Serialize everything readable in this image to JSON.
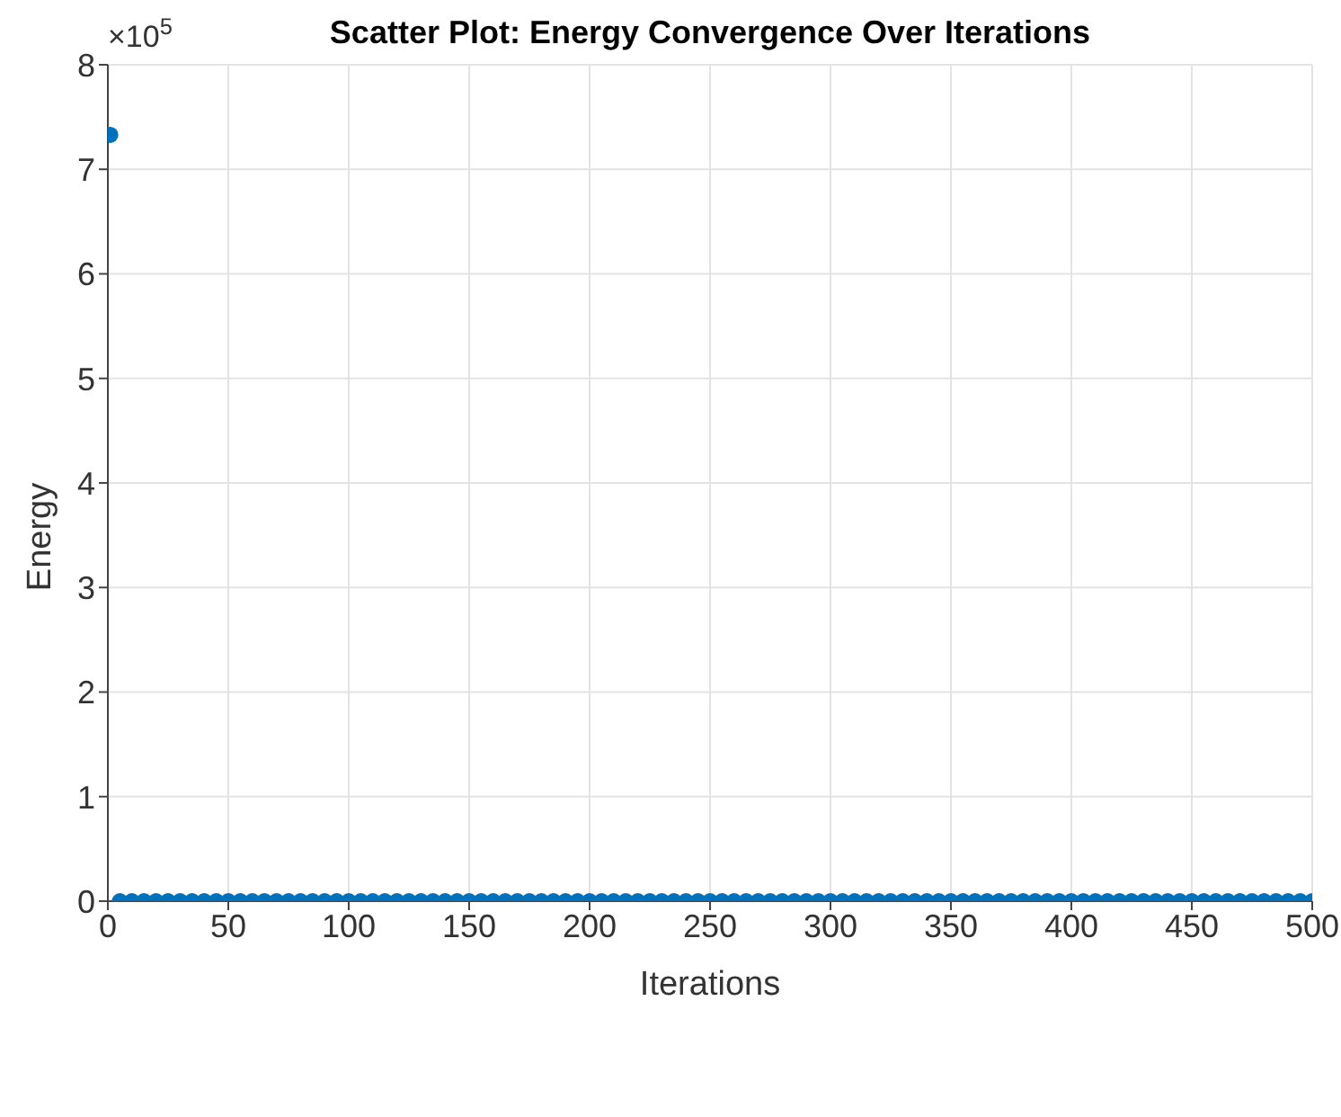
{
  "chart_data": {
    "type": "scatter",
    "title": "Scatter Plot: Energy Convergence Over Iterations",
    "xlabel": "Iterations",
    "ylabel": "Energy",
    "annotations": [
      "×10$^{5}$"
    ],
    "x": [
      1,
      5,
      10,
      15,
      20,
      25,
      30,
      35,
      40,
      45,
      50,
      55,
      60,
      65,
      70,
      75,
      80,
      85,
      90,
      95,
      100,
      105,
      110,
      115,
      120,
      125,
      130,
      135,
      140,
      145,
      150,
      155,
      160,
      165,
      170,
      175,
      180,
      185,
      190,
      195,
      200,
      205,
      210,
      215,
      220,
      225,
      230,
      235,
      240,
      245,
      250,
      255,
      260,
      265,
      270,
      275,
      280,
      285,
      290,
      295,
      300,
      305,
      310,
      315,
      320,
      325,
      330,
      335,
      340,
      345,
      350,
      355,
      360,
      365,
      370,
      375,
      380,
      385,
      390,
      395,
      400,
      405,
      410,
      415,
      420,
      425,
      430,
      435,
      440,
      445,
      450,
      455,
      460,
      465,
      470,
      475,
      480,
      485,
      490,
      495,
      500
    ],
    "values": [
      7.33,
      0,
      0,
      0,
      0,
      0,
      0,
      0,
      0,
      0,
      0,
      0,
      0,
      0,
      0,
      0,
      0,
      0,
      0,
      0,
      0,
      0,
      0,
      0,
      0,
      0,
      0,
      0,
      0,
      0,
      0,
      0,
      0,
      0,
      0,
      0,
      0,
      0,
      0,
      0,
      0,
      0,
      0,
      0,
      0,
      0,
      0,
      0,
      0,
      0,
      0,
      0,
      0,
      0,
      0,
      0,
      0,
      0,
      0,
      0,
      0,
      0,
      0,
      0,
      0,
      0,
      0,
      0,
      0,
      0,
      0,
      0,
      0,
      0,
      0,
      0,
      0,
      0,
      0,
      0,
      0,
      0,
      0,
      0,
      0,
      0,
      0,
      0,
      0,
      0,
      0,
      0,
      0,
      0,
      0,
      0,
      0,
      0,
      0,
      0,
      0
    ],
    "color": "#0072bd",
    "marker": "circle",
    "grid": true,
    "xlim": [
      0,
      500
    ],
    "xticks": [
      0,
      50,
      100,
      150,
      200,
      250,
      300,
      350,
      400,
      450,
      500
    ],
    "ylim": [
      0,
      8
    ],
    "yticks": [
      0,
      1,
      2,
      3,
      4,
      5,
      6,
      7,
      8
    ]
  }
}
